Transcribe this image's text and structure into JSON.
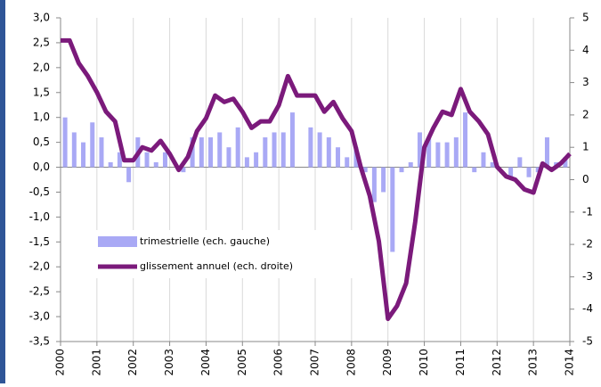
{
  "chart_data": {
    "type": "bar-line",
    "xlim": [
      2000,
      2014
    ],
    "xticks": [
      2000,
      2001,
      2002,
      2003,
      2004,
      2005,
      2006,
      2007,
      2008,
      2009,
      2010,
      2011,
      2012,
      2013,
      2014
    ],
    "ylim": [
      -3.5,
      3
    ],
    "yticks": [
      {
        "value": 3,
        "label": "3,0"
      },
      {
        "value": 2.5,
        "label": "2,5"
      },
      {
        "value": 2,
        "label": "2,0"
      },
      {
        "value": 1.5,
        "label": "1,5"
      },
      {
        "value": 1,
        "label": "1,0"
      },
      {
        "value": 0.5,
        "label": "0,5"
      },
      {
        "value": 0,
        "label": "0,0"
      },
      {
        "value": -0.5,
        "label": "-0,5"
      },
      {
        "value": -1,
        "label": "-1,0"
      },
      {
        "value": -1.5,
        "label": "-1,5"
      },
      {
        "value": -2,
        "label": "-2,0"
      },
      {
        "value": -2.5,
        "label": "-2,5"
      },
      {
        "value": -3,
        "label": "-3,0"
      },
      {
        "value": -3.5,
        "label": "-3,5"
      }
    ],
    "y2lim": [
      -5,
      5
    ],
    "y2ticks": [
      5,
      4,
      3,
      2,
      1,
      0,
      -1,
      -2,
      -3,
      -4,
      -5
    ],
    "grid": "x",
    "series": [
      {
        "name": "trimestrielle (ech. gauche)",
        "type": "bar",
        "color": "#a9a9f5",
        "x": [
          2000.125,
          2000.375,
          2000.625,
          2000.875,
          2001.125,
          2001.375,
          2001.625,
          2001.875,
          2002.125,
          2002.375,
          2002.625,
          2002.875,
          2003.125,
          2003.375,
          2003.625,
          2003.875,
          2004.125,
          2004.375,
          2004.625,
          2004.875,
          2005.125,
          2005.375,
          2005.625,
          2005.875,
          2006.125,
          2006.375,
          2006.625,
          2006.875,
          2007.125,
          2007.375,
          2007.625,
          2007.875,
          2008.125,
          2008.375,
          2008.625,
          2008.875,
          2009.125,
          2009.375,
          2009.625,
          2009.875,
          2010.125,
          2010.375,
          2010.625,
          2010.875,
          2011.125,
          2011.375,
          2011.625,
          2011.875,
          2012.125,
          2012.375,
          2012.625,
          2012.875,
          2013.125,
          2013.375,
          2013.625,
          2013.875
        ],
        "values": [
          1.0,
          0.7,
          0.5,
          0.9,
          0.6,
          0.1,
          0.3,
          -0.3,
          0.6,
          0.3,
          0.1,
          0.3,
          0.0,
          -0.1,
          0.6,
          0.6,
          0.6,
          0.7,
          0.4,
          0.8,
          0.2,
          0.3,
          0.6,
          0.7,
          0.7,
          1.1,
          0.0,
          0.8,
          0.7,
          0.6,
          0.4,
          0.2,
          0.4,
          -0.1,
          -0.7,
          -0.5,
          -1.7,
          -0.1,
          0.1,
          0.7,
          0.6,
          0.5,
          0.5,
          0.6,
          1.1,
          -0.1,
          0.3,
          0.1,
          0.0,
          -0.2,
          0.2,
          -0.2,
          -0.1,
          0.6,
          0.1,
          0.2
        ]
      },
      {
        "name": "glissement annuel (ech. droite)",
        "type": "line",
        "axis": "y2",
        "color": "#7b1a7b",
        "x": [
          2000,
          2000.25,
          2000.5,
          2000.75,
          2001,
          2001.25,
          2001.5,
          2001.75,
          2002,
          2002.25,
          2002.5,
          2002.75,
          2003,
          2003.25,
          2003.5,
          2003.75,
          2004,
          2004.25,
          2004.5,
          2004.75,
          2005,
          2005.25,
          2005.5,
          2005.75,
          2006,
          2006.25,
          2006.5,
          2006.75,
          2007,
          2007.25,
          2007.5,
          2007.75,
          2008,
          2008.25,
          2008.5,
          2008.75,
          2009,
          2009.25,
          2009.5,
          2009.75,
          2010,
          2010.25,
          2010.5,
          2010.75,
          2011,
          2011.25,
          2011.5,
          2011.75,
          2012,
          2012.25,
          2012.5,
          2012.75,
          2013,
          2013.25,
          2013.5,
          2013.75,
          2014
        ],
        "values": [
          4.3,
          4.3,
          3.6,
          3.2,
          2.7,
          2.1,
          1.8,
          0.6,
          0.6,
          1.0,
          0.9,
          1.2,
          0.8,
          0.3,
          0.7,
          1.5,
          1.9,
          2.6,
          2.4,
          2.5,
          2.1,
          1.6,
          1.8,
          1.8,
          2.3,
          3.2,
          2.6,
          2.6,
          2.6,
          2.1,
          2.4,
          1.9,
          1.5,
          0.4,
          -0.5,
          -1.9,
          -4.3,
          -3.9,
          -3.2,
          -1.3,
          1.0,
          1.6,
          2.1,
          2.0,
          2.8,
          2.1,
          1.8,
          1.4,
          0.4,
          0.1,
          0.0,
          -0.3,
          -0.4,
          0.5,
          0.3,
          0.5,
          0.8
        ]
      }
    ]
  }
}
